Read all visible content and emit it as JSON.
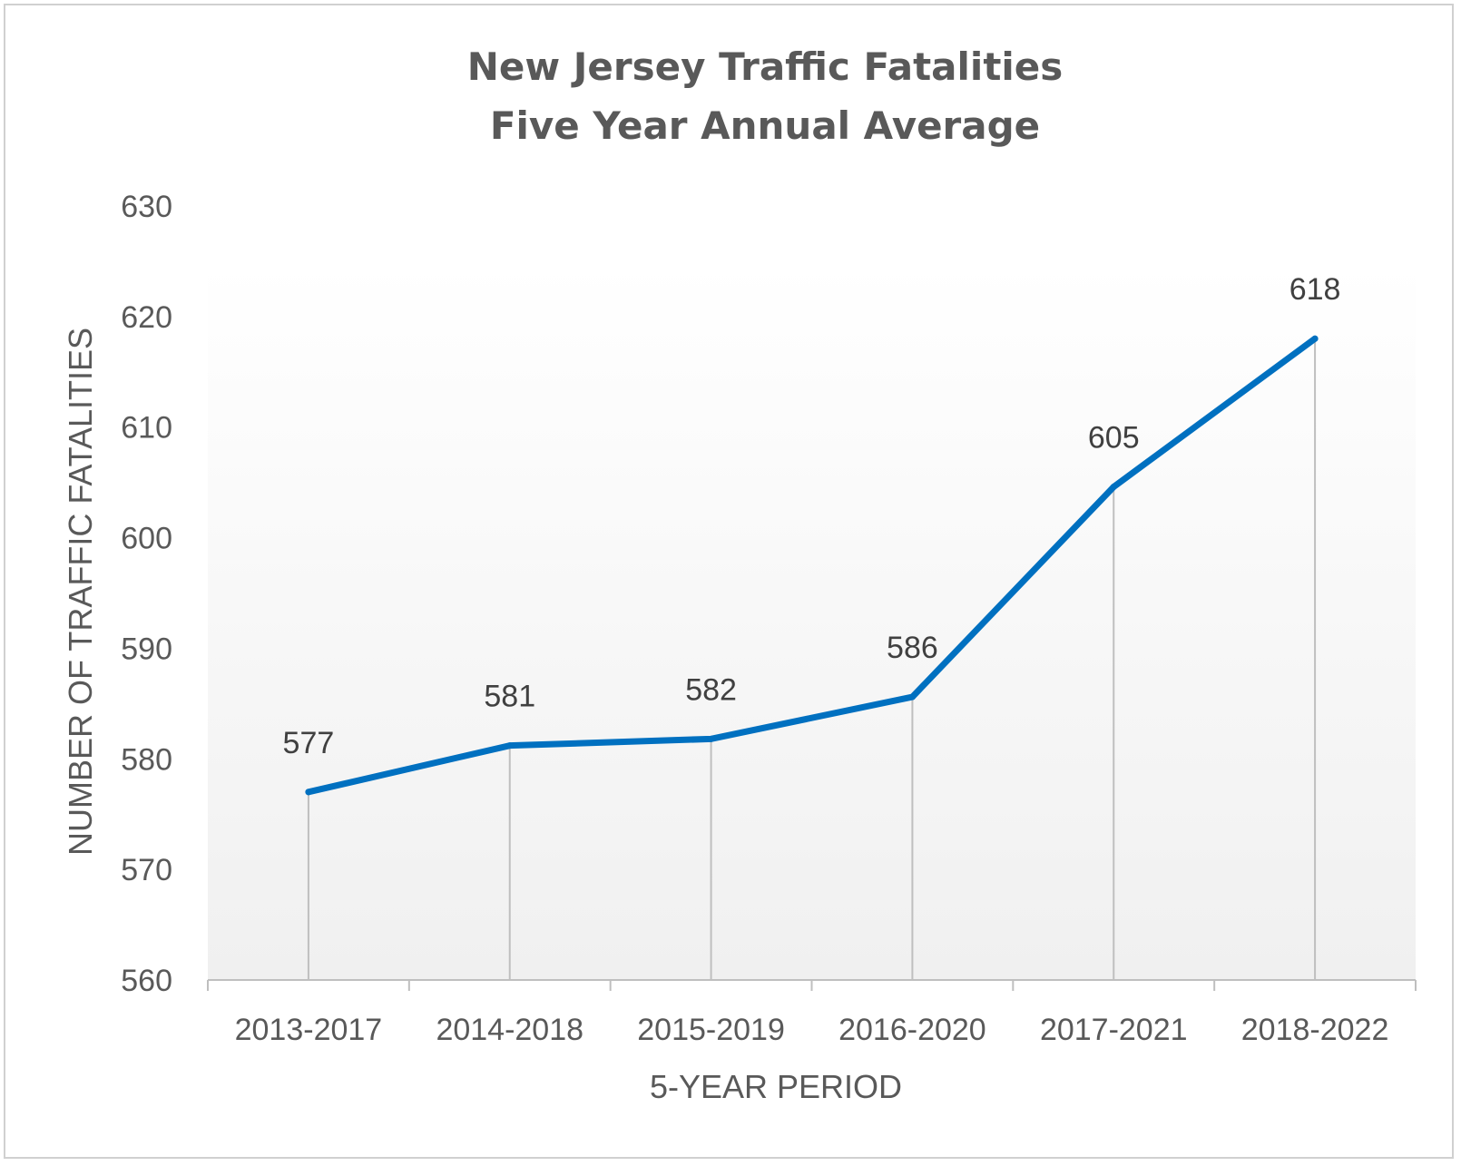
{
  "chart_data": {
    "type": "line",
    "title": "New Jersey Traffic Fatalities",
    "subtitle": "Five Year Annual Average",
    "xlabel": "5-YEAR PERIOD",
    "ylabel": "NUMBER OF TRAFFIC FATALITIES",
    "categories": [
      "2013-2017",
      "2014-2018",
      "2015-2019",
      "2016-2020",
      "2017-2021",
      "2018-2022"
    ],
    "values": [
      577,
      581.2,
      581.8,
      585.6,
      604.6,
      618
    ],
    "data_labels": [
      "577",
      "581",
      "582",
      "586",
      "605",
      "618"
    ],
    "ylim": [
      560,
      630
    ],
    "yticks": [
      "560",
      "570",
      "580",
      "590",
      "600",
      "610",
      "620",
      "630"
    ],
    "grid": false,
    "drop_lines": true,
    "line_color": "#0070C0",
    "drop_line_color": "#BFBFBF",
    "plot_background": "gradient white to light gray"
  }
}
